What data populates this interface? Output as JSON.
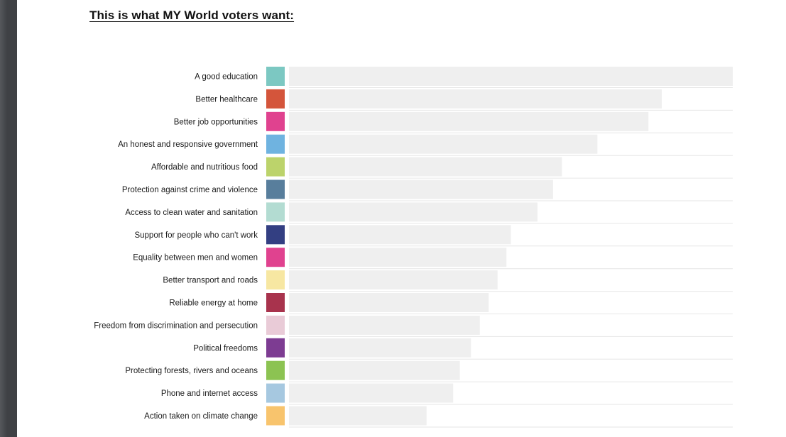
{
  "title": "This is what MY World voters want:",
  "chart_data": {
    "type": "bar",
    "orientation": "horizontal",
    "title": "This is what MY World voters want:",
    "xlabel": "",
    "ylabel": "",
    "grid": false,
    "legend": "none",
    "xlim": [
      0,
      100
    ],
    "categories": [
      "A good education",
      "Better healthcare",
      "Better job opportunities",
      "An honest and responsive government",
      "Affordable and nutritious food",
      "Protection against crime and violence",
      "Access to clean water and sanitation",
      "Support for people who can't work",
      "Equality between men and women",
      "Better transport and roads",
      "Reliable energy at home",
      "Freedom from discrimination and persecution",
      "Political freedoms",
      "Protecting forests, rivers and oceans",
      "Phone and internet access",
      "Action taken on climate change"
    ],
    "values": [
      100,
      84,
      81,
      69.5,
      61.5,
      59.5,
      56,
      50,
      49,
      47,
      45,
      43,
      41,
      38.5,
      37,
      31
    ],
    "colors": [
      "#7cc8c2",
      "#d4553b",
      "#e0428f",
      "#6fb3e0",
      "#bcd36b",
      "#587e9c",
      "#b3dcd2",
      "#333f82",
      "#e0428f",
      "#f7e7a2",
      "#a8334d",
      "#e9cbd7",
      "#7d3c92",
      "#8cc352",
      "#a6c8e0",
      "#f8c46d"
    ]
  }
}
